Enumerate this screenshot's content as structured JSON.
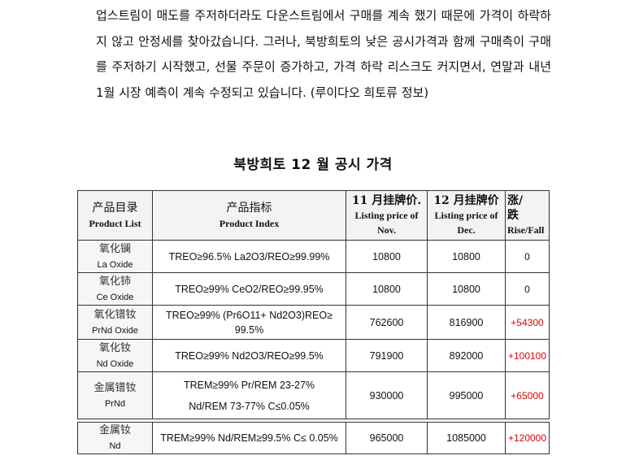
{
  "paragraph": "업스트림이 매도를 주저하더라도 다운스트림에서 구매를 계속 했기 때문에 가격이 하락하지 않고 안정세를 찾아갔습니다. 그러나, 북방희토의 낮은 공시가격과 함께 구매측이 구매를 주저하기 시작했고, 선물 주문이 증가하고, 가격 하락 리스크도 커지면서, 연말과 내년 1월 시장 예측이 계속 수정되고 있습니다. (루이다오 희토류 정보)",
  "heading": "북방희토 12 월 공시 가격",
  "table": {
    "headers": {
      "product_cn": "产品目录",
      "product_en": "Product List",
      "index_cn": "产品指标",
      "index_en": "Product Index",
      "nov_cn": "11 月挂牌价.",
      "nov_en1": "Listing price of",
      "nov_en2": "Nov.",
      "dec_cn": "12 月挂牌价",
      "dec_en1": "Listing price of",
      "dec_en2": "Dec.",
      "change_cn1": "涨/",
      "change_cn2": "跌",
      "change_en": "Rise/Fall"
    },
    "rows": [
      {
        "name_cn": "氧化镧",
        "name_en": "La Oxide",
        "index": "TREO≥96.5%  La2O3/REO≥99.99%",
        "nov": "10800",
        "dec": "10800",
        "change": "0"
      },
      {
        "name_cn": "氧化铈",
        "name_en": "Ce Oxide",
        "index": "TREO≥99%   CeO2/REO≥99.95%",
        "nov": "10800",
        "dec": "10800",
        "change": "0"
      },
      {
        "name_cn": "氧化镨钕",
        "name_en": "PrNd Oxide",
        "index": "TREO≥99%  (Pr6O11+ Nd2O3)REO≥ 99.5%",
        "nov": "762600",
        "dec": "816900",
        "change": "+54300"
      },
      {
        "name_cn": "氧化钕",
        "name_en": "Nd Oxide",
        "index": "TREO≥99%  Nd2O3/REO≥99.5%",
        "nov": "791900",
        "dec": "892000",
        "change": "+100100"
      },
      {
        "name_cn": "金属镨钕",
        "name_en": "PrNd",
        "index1": "TREM≥99%  Pr/REM 23-27%",
        "index2": "Nd/REM 73-77% C≤0.05%",
        "nov": "930000",
        "dec": "995000",
        "change": "+65000"
      },
      {
        "name_cn": "金属钕",
        "name_en": "Nd",
        "index": "TREM≥99%  Nd/REM≥99.5%  C≤ 0.05%",
        "nov": "965000",
        "dec": "1085000",
        "change": "+120000"
      }
    ]
  },
  "colors": {
    "rise": "#e00000"
  }
}
